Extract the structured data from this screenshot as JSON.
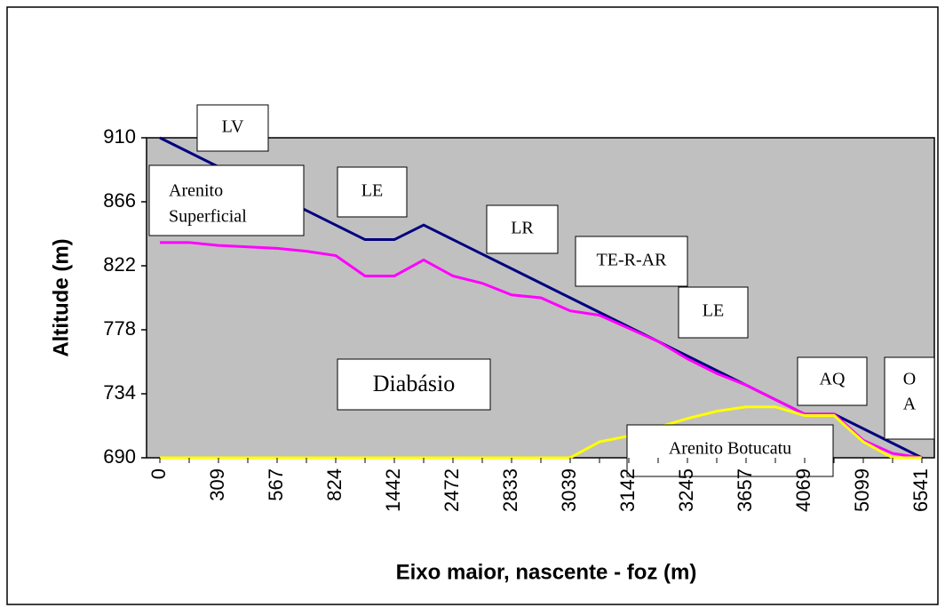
{
  "chart_data": {
    "type": "line",
    "y_label": "Altitude   (m)",
    "x_label": "Eixo maior, nascente - foz   (m)",
    "categories": [
      0,
      null,
      309,
      null,
      567,
      null,
      824,
      null,
      1442,
      null,
      2472,
      null,
      2833,
      null,
      3039,
      null,
      3142,
      null,
      3245,
      null,
      3657,
      null,
      4069,
      null,
      5099,
      null,
      6541
    ],
    "ylim": [
      690,
      910
    ],
    "yticks": [
      690,
      734,
      778,
      822,
      866,
      910
    ],
    "plot_background": "#c0c0c0",
    "series": [
      {
        "color": "#000080",
        "values": [
          910,
          900,
          890,
          880,
          870,
          860,
          850,
          840,
          840,
          850,
          840,
          830,
          820,
          810,
          800,
          790,
          780,
          770,
          760,
          750,
          740,
          730,
          720,
          720,
          710,
          700,
          690
        ]
      },
      {
        "color": "#ff00ff",
        "values": [
          838,
          838,
          836,
          835,
          834,
          832,
          829,
          815,
          815,
          826,
          815,
          810,
          802,
          800,
          791,
          788,
          779,
          770,
          758,
          748,
          740,
          730,
          720,
          720,
          702,
          693,
          690
        ]
      },
      {
        "color": "#ffff00",
        "values": [
          690,
          690,
          690,
          690,
          690,
          690,
          690,
          690,
          690,
          690,
          690,
          690,
          690,
          690,
          690,
          701,
          705,
          711,
          717,
          722,
          725,
          725,
          719,
          719,
          701,
          690,
          690
        ]
      }
    ],
    "annotations": [
      [
        "LV"
      ],
      [
        "Arenito",
        "Superficial"
      ],
      [
        "LE"
      ],
      [
        "LR"
      ],
      [
        "TE-R-AR"
      ],
      [
        "LE"
      ],
      [
        "Diabásio"
      ],
      [
        "AQ"
      ],
      [
        "O",
        "A"
      ],
      [
        "Arenito Botucatu"
      ]
    ]
  }
}
